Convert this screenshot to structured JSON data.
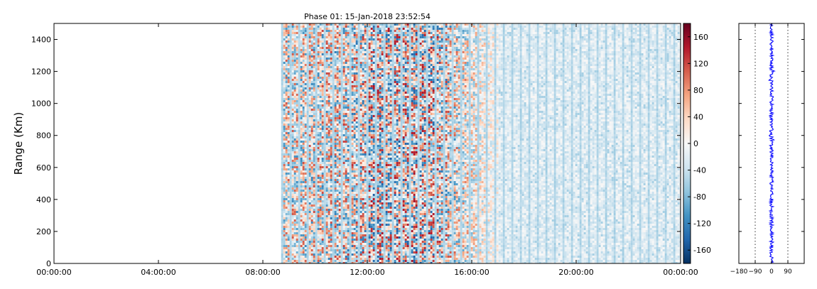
{
  "chart_data": {
    "type": "heatmap",
    "title": "Phase 01: 15-Jan-2018 23:52:54",
    "xlabel": "",
    "ylabel": "Range (Km)",
    "x_ticks": [
      "00:00:00",
      "04:00:00",
      "08:00:00",
      "12:00:00",
      "16:00:00",
      "20:00:00",
      "00:00:00"
    ],
    "x_tick_hours": [
      0,
      4,
      8,
      12,
      16,
      20,
      24
    ],
    "xlim_hours": [
      0,
      24
    ],
    "y_ticks": [
      0,
      200,
      400,
      600,
      800,
      1000,
      1200,
      1400
    ],
    "ylim": [
      0,
      1500
    ],
    "data_start_hour": 8.7,
    "data_end_hour": 24,
    "colormap": "RdBu_r",
    "colorbar": {
      "ticks": [
        160,
        120,
        80,
        40,
        0,
        -40,
        -80,
        -120,
        -160
      ],
      "range": [
        -180,
        180
      ]
    },
    "phase_distribution": {
      "type": "line",
      "series_color": "#0000ff",
      "x_ticks": [
        "−180",
        "−90",
        "0",
        "90"
      ],
      "x_tick_values": [
        -180,
        -90,
        0,
        90
      ],
      "xlim": [
        -180,
        180
      ],
      "ylim": [
        0,
        1500
      ],
      "reference_lines": [
        -90,
        90
      ],
      "center": 0,
      "spread": 10
    }
  },
  "colors": {
    "axes": "#000000",
    "series": "#0000ff",
    "colormap_stops": [
      "#053061",
      "#2166ac",
      "#4393c3",
      "#92c5de",
      "#d1e5f0",
      "#f7f7f7",
      "#fddbc7",
      "#f4a582",
      "#d6604d",
      "#b2182b",
      "#67001f"
    ]
  }
}
